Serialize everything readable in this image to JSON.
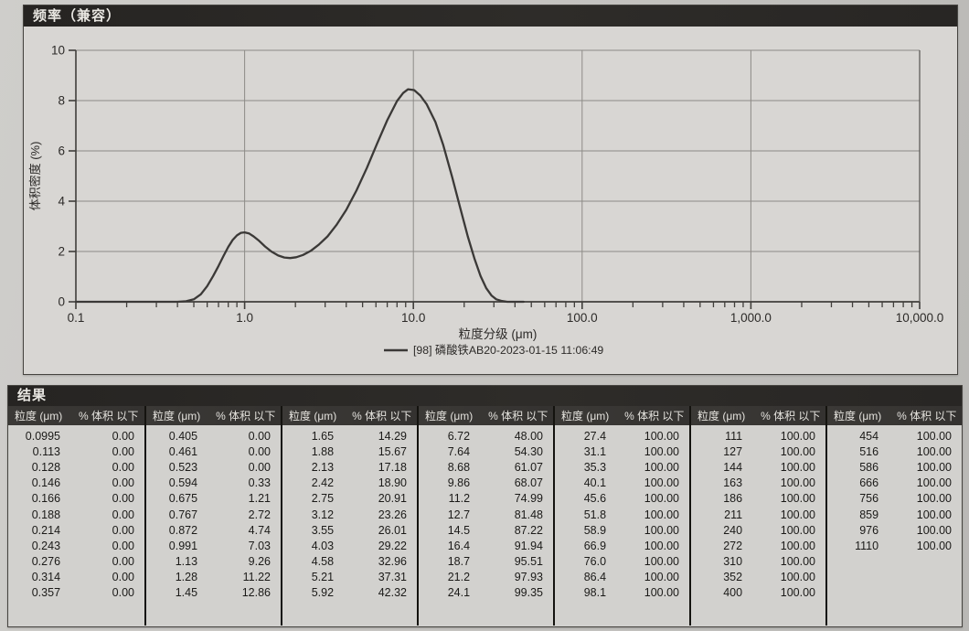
{
  "chart_panel": {
    "title": "频率（兼容）"
  },
  "chart_data": {
    "type": "line",
    "title": "频率（兼容）",
    "xlabel": "粒度分级 (μm)",
    "ylabel": "体积密度 (%)",
    "x_scale": "log",
    "xlim": [
      0.1,
      10000
    ],
    "ylim": [
      0,
      10
    ],
    "grid": true,
    "legend_position": "bottom",
    "curve_color": "#3b3937",
    "x_ticks": [
      {
        "v": 0.1,
        "label": "0.1",
        "grid": false
      },
      {
        "v": 1,
        "label": "1.0",
        "grid": true
      },
      {
        "v": 10,
        "label": "10.0",
        "grid": true
      },
      {
        "v": 100,
        "label": "100.0",
        "grid": true
      },
      {
        "v": 1000,
        "label": "1,000.0",
        "grid": true
      },
      {
        "v": 10000,
        "label": "10,000.0",
        "grid": false
      }
    ],
    "y_ticks": [
      0,
      2,
      4,
      6,
      8,
      10
    ],
    "series": [
      {
        "name": "[98] 磷酸铁AB20-2023-01-15 11:06:49",
        "points": [
          [
            0.4,
            0
          ],
          [
            0.45,
            0.02
          ],
          [
            0.5,
            0.1
          ],
          [
            0.55,
            0.3
          ],
          [
            0.6,
            0.62
          ],
          [
            0.65,
            1.02
          ],
          [
            0.7,
            1.42
          ],
          [
            0.75,
            1.82
          ],
          [
            0.8,
            2.18
          ],
          [
            0.85,
            2.46
          ],
          [
            0.9,
            2.64
          ],
          [
            0.95,
            2.74
          ],
          [
            1.0,
            2.76
          ],
          [
            1.06,
            2.72
          ],
          [
            1.13,
            2.6
          ],
          [
            1.22,
            2.42
          ],
          [
            1.32,
            2.2
          ],
          [
            1.44,
            2.0
          ],
          [
            1.58,
            1.84
          ],
          [
            1.72,
            1.76
          ],
          [
            1.86,
            1.74
          ],
          [
            2.02,
            1.77
          ],
          [
            2.22,
            1.86
          ],
          [
            2.46,
            2.02
          ],
          [
            2.75,
            2.27
          ],
          [
            3.1,
            2.6
          ],
          [
            3.5,
            3.05
          ],
          [
            4.0,
            3.65
          ],
          [
            4.6,
            4.42
          ],
          [
            5.3,
            5.32
          ],
          [
            6.1,
            6.3
          ],
          [
            7.0,
            7.22
          ],
          [
            8.0,
            7.98
          ],
          [
            8.7,
            8.3
          ],
          [
            9.3,
            8.45
          ],
          [
            10.1,
            8.42
          ],
          [
            11.0,
            8.2
          ],
          [
            12.0,
            7.85
          ],
          [
            13.5,
            7.15
          ],
          [
            15.0,
            6.25
          ],
          [
            17.0,
            4.95
          ],
          [
            19.0,
            3.7
          ],
          [
            21.0,
            2.6
          ],
          [
            23.0,
            1.72
          ],
          [
            25.0,
            1.02
          ],
          [
            27.0,
            0.55
          ],
          [
            29.0,
            0.25
          ],
          [
            31.0,
            0.1
          ],
          [
            33.5,
            0.03
          ],
          [
            36.0,
            0
          ]
        ]
      }
    ]
  },
  "results": {
    "title": "结果",
    "col_size_label": "粒度 (μm)",
    "col_pct_label": "% 体积 以下",
    "groups": [
      {
        "rows": [
          [
            "0.0995",
            "0.00"
          ],
          [
            "0.113",
            "0.00"
          ],
          [
            "0.128",
            "0.00"
          ],
          [
            "0.146",
            "0.00"
          ],
          [
            "0.166",
            "0.00"
          ],
          [
            "0.188",
            "0.00"
          ],
          [
            "0.214",
            "0.00"
          ],
          [
            "0.243",
            "0.00"
          ],
          [
            "0.276",
            "0.00"
          ],
          [
            "0.314",
            "0.00"
          ],
          [
            "0.357",
            "0.00"
          ]
        ]
      },
      {
        "rows": [
          [
            "0.405",
            "0.00"
          ],
          [
            "0.461",
            "0.00"
          ],
          [
            "0.523",
            "0.00"
          ],
          [
            "0.594",
            "0.33"
          ],
          [
            "0.675",
            "1.21"
          ],
          [
            "0.767",
            "2.72"
          ],
          [
            "0.872",
            "4.74"
          ],
          [
            "0.991",
            "7.03"
          ],
          [
            "1.13",
            "9.26"
          ],
          [
            "1.28",
            "11.22"
          ],
          [
            "1.45",
            "12.86"
          ]
        ]
      },
      {
        "rows": [
          [
            "1.65",
            "14.29"
          ],
          [
            "1.88",
            "15.67"
          ],
          [
            "2.13",
            "17.18"
          ],
          [
            "2.42",
            "18.90"
          ],
          [
            "2.75",
            "20.91"
          ],
          [
            "3.12",
            "23.26"
          ],
          [
            "3.55",
            "26.01"
          ],
          [
            "4.03",
            "29.22"
          ],
          [
            "4.58",
            "32.96"
          ],
          [
            "5.21",
            "37.31"
          ],
          [
            "5.92",
            "42.32"
          ]
        ]
      },
      {
        "rows": [
          [
            "6.72",
            "48.00"
          ],
          [
            "7.64",
            "54.30"
          ],
          [
            "8.68",
            "61.07"
          ],
          [
            "9.86",
            "68.07"
          ],
          [
            "11.2",
            "74.99"
          ],
          [
            "12.7",
            "81.48"
          ],
          [
            "14.5",
            "87.22"
          ],
          [
            "16.4",
            "91.94"
          ],
          [
            "18.7",
            "95.51"
          ],
          [
            "21.2",
            "97.93"
          ],
          [
            "24.1",
            "99.35"
          ]
        ]
      },
      {
        "rows": [
          [
            "27.4",
            "100.00"
          ],
          [
            "31.1",
            "100.00"
          ],
          [
            "35.3",
            "100.00"
          ],
          [
            "40.1",
            "100.00"
          ],
          [
            "45.6",
            "100.00"
          ],
          [
            "51.8",
            "100.00"
          ],
          [
            "58.9",
            "100.00"
          ],
          [
            "66.9",
            "100.00"
          ],
          [
            "76.0",
            "100.00"
          ],
          [
            "86.4",
            "100.00"
          ],
          [
            "98.1",
            "100.00"
          ]
        ]
      },
      {
        "rows": [
          [
            "111",
            "100.00"
          ],
          [
            "127",
            "100.00"
          ],
          [
            "144",
            "100.00"
          ],
          [
            "163",
            "100.00"
          ],
          [
            "186",
            "100.00"
          ],
          [
            "211",
            "100.00"
          ],
          [
            "240",
            "100.00"
          ],
          [
            "272",
            "100.00"
          ],
          [
            "310",
            "100.00"
          ],
          [
            "352",
            "100.00"
          ],
          [
            "400",
            "100.00"
          ]
        ]
      },
      {
        "rows": [
          [
            "454",
            "100.00"
          ],
          [
            "516",
            "100.00"
          ],
          [
            "586",
            "100.00"
          ],
          [
            "666",
            "100.00"
          ],
          [
            "756",
            "100.00"
          ],
          [
            "859",
            "100.00"
          ],
          [
            "976",
            "100.00"
          ],
          [
            "1110",
            "100.00"
          ]
        ]
      }
    ]
  }
}
